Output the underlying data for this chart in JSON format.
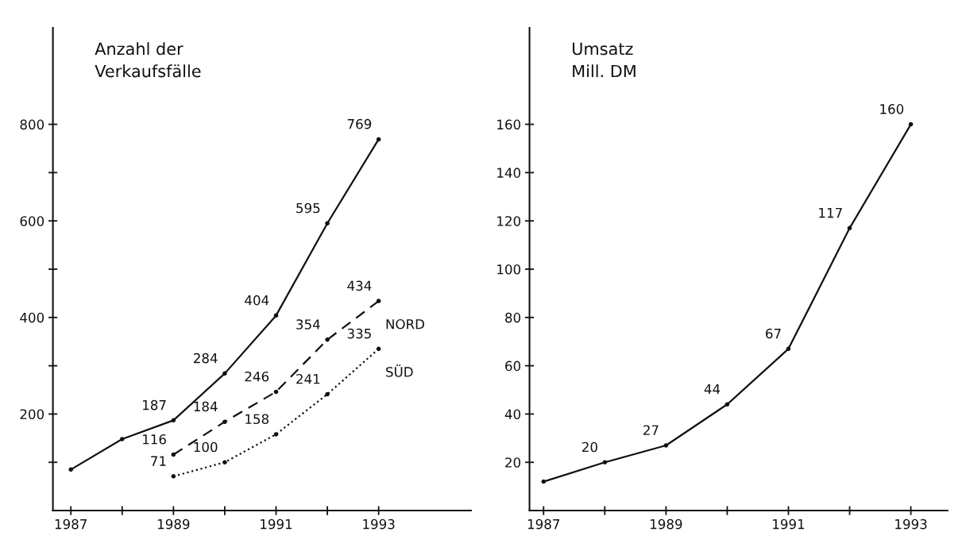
{
  "chart_data": [
    {
      "type": "line",
      "ylabel": "Anzahl der\nVerkaufsfälle",
      "x": [
        1987,
        1988,
        1989,
        1990,
        1991,
        1992,
        1993
      ],
      "xlim": [
        1986.65,
        1994.8
      ],
      "ylim": [
        0,
        1000
      ],
      "xticks": [
        1987,
        {
          "value": 1988,
          "label": null
        },
        1989,
        {
          "value": 1990,
          "label": null
        },
        1991,
        {
          "value": 1992,
          "label": null
        },
        1993
      ],
      "yticks": [
        {
          "value": 100,
          "label": null
        },
        200,
        {
          "value": 300,
          "label": null
        },
        400,
        {
          "value": 500,
          "label": null
        },
        600,
        {
          "value": 700,
          "label": null
        },
        800
      ],
      "grid": false,
      "legend": false,
      "marker": "circle",
      "series": [
        {
          "color": "#111111",
          "line_style": "solid",
          "values": [
            85,
            148,
            187,
            284,
            404,
            595,
            769
          ],
          "value_labels": [
            null,
            null,
            "187",
            "284",
            "404",
            "595",
            "769"
          ]
        },
        {
          "name": "NORD",
          "color": "#111111",
          "line_style": "dashed",
          "x": [
            1989,
            1990,
            1991,
            1992,
            1993
          ],
          "values": [
            116,
            184,
            246,
            354,
            434
          ],
          "value_labels": [
            "116",
            "184",
            "246",
            "354",
            "434"
          ]
        },
        {
          "name": "SÜD",
          "color": "#111111",
          "line_style": "dotted",
          "x": [
            1989,
            1990,
            1991,
            1992,
            1993
          ],
          "values": [
            71,
            100,
            158,
            241,
            335
          ],
          "value_labels": [
            "71",
            "100",
            "158",
            "241",
            "335"
          ]
        }
      ]
    },
    {
      "type": "line",
      "ylabel": "Umsatz\nMill. DM",
      "x": [
        1987,
        1988,
        1989,
        1990,
        1991,
        1992,
        1993
      ],
      "xlim": [
        1986.77,
        1993.6
      ],
      "ylim": [
        0,
        200
      ],
      "xticks": [
        1987,
        {
          "value": 1988,
          "label": null
        },
        1989,
        {
          "value": 1990,
          "label": null
        },
        1991,
        {
          "value": 1992,
          "label": null
        },
        1993
      ],
      "yticks": [
        20,
        40,
        60,
        80,
        100,
        120,
        140,
        160
      ],
      "grid": false,
      "legend": false,
      "marker": "circle",
      "series": [
        {
          "color": "#111111",
          "line_style": "solid",
          "values": [
            12,
            20,
            27,
            44,
            67,
            117,
            160
          ],
          "value_labels": [
            null,
            "20",
            "27",
            "44",
            "67",
            "117",
            "160"
          ]
        }
      ]
    }
  ]
}
